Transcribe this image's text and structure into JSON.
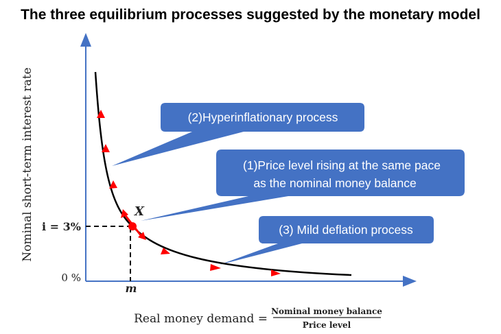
{
  "title": "The three equilibrium processes suggested by the monetary model",
  "axes": {
    "y_label": "Nominal short-term interest rate",
    "y_tick_rate": "i = 3%",
    "y_tick_zero": "0 %",
    "x_tick_m": "m",
    "x_label_prefix": "Real money demand =",
    "x_label_numerator": "Nominal money balance",
    "x_label_denominator": "Price level"
  },
  "point_label": "X",
  "callouts": {
    "hyper": "(2)Hyperinflationary process",
    "steady_line1": "(1)Price level rising at the same pace",
    "steady_line2": "as the nominal money balance",
    "deflation": "(3) Mild deflation process"
  },
  "colors": {
    "axis": "#4472c4",
    "callout": "#4472c4",
    "arrow": "#ff0000",
    "curve": "#000000"
  }
}
